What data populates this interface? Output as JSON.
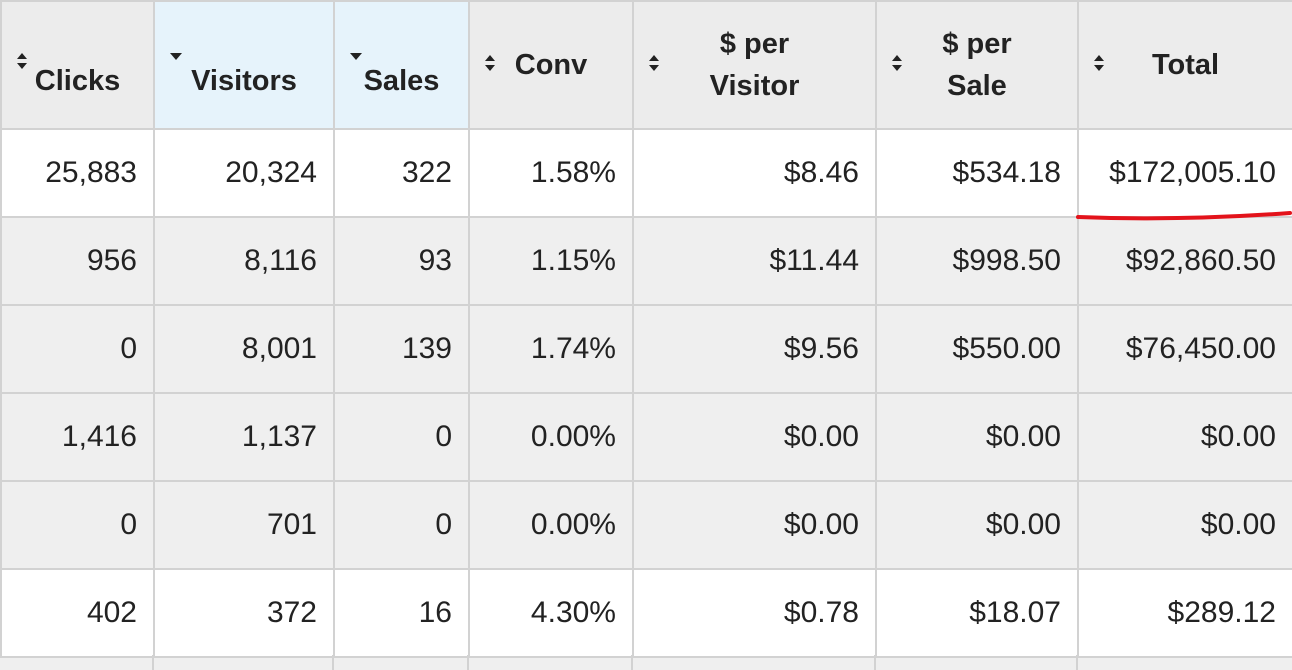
{
  "table": {
    "headers": [
      "Clicks",
      "Visitors",
      "Sales",
      "Conv",
      "$ per Visitor",
      "$ per Sale",
      "Total"
    ],
    "rows": [
      [
        "25,883",
        "20,324",
        "322",
        "1.58%",
        "$8.46",
        "$534.18",
        "$172,005.10"
      ],
      [
        "956",
        "8,116",
        "93",
        "1.15%",
        "$11.44",
        "$998.50",
        "$92,860.50"
      ],
      [
        "0",
        "8,001",
        "139",
        "1.74%",
        "$9.56",
        "$550.00",
        "$76,450.00"
      ],
      [
        "1,416",
        "1,137",
        "0",
        "0.00%",
        "$0.00",
        "$0.00",
        "$0.00"
      ],
      [
        "0",
        "701",
        "0",
        "0.00%",
        "$0.00",
        "$0.00",
        "$0.00"
      ],
      [
        "402",
        "372",
        "16",
        "4.30%",
        "$0.78",
        "$18.07",
        "$289.12"
      ]
    ]
  }
}
